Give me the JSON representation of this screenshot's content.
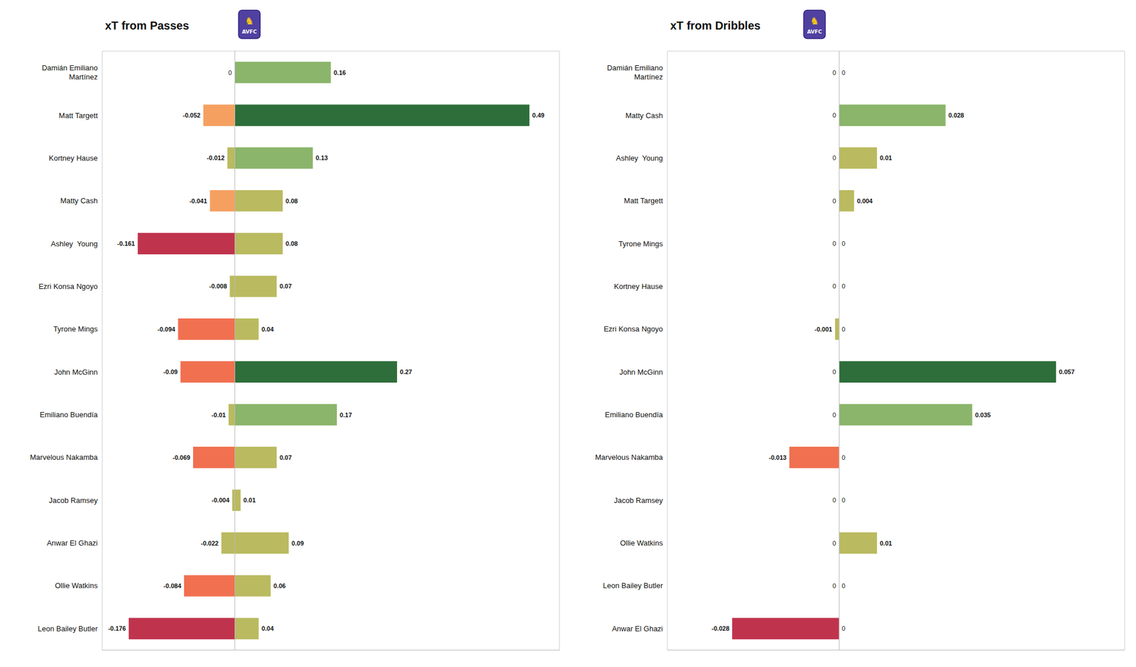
{
  "chart_data": [
    {
      "type": "bar",
      "title": "xT from Passes",
      "orientation": "horizontal",
      "annotations": [
        "♞",
        "AVFC"
      ],
      "categories": [
        "Damián Emiliano\nMartínez",
        "Matt Targett",
        "Kortney Hause",
        "Matty Cash",
        "Ashley  Young",
        "Ezri Konsa Ngoyo",
        "Tyrone Mings",
        "John McGinn",
        "Emiliano Buendía",
        "Marvelous Nakamba",
        "Jacob Ramsey",
        "Anwar El Ghazi",
        "Ollie Watkins",
        "Leon Bailey Butler"
      ],
      "series": [
        {
          "values": [
            0.0,
            -0.052,
            -0.012,
            -0.041,
            -0.161,
            -0.008,
            -0.094,
            -0.09,
            -0.01,
            -0.069,
            -0.004,
            -0.022,
            -0.084,
            -0.176
          ],
          "colors": [
            "none",
            "#f5a060",
            "#baba60",
            "#f5a060",
            "#c0334d",
            "#baba60",
            "#f07050",
            "#f07050",
            "#baba60",
            "#f07050",
            "#baba60",
            "#baba60",
            "#f07050",
            "#c0334d"
          ]
        },
        {
          "values": [
            0.16,
            0.49,
            0.13,
            0.08,
            0.08,
            0.07,
            0.04,
            0.27,
            0.17,
            0.07,
            0.01,
            0.09,
            0.06,
            0.04
          ],
          "colors": [
            "#8ab56a",
            "#2d6e3a",
            "#8ab56a",
            "#baba60",
            "#baba60",
            "#baba60",
            "#baba60",
            "#2d6e3a",
            "#8ab56a",
            "#baba60",
            "#baba60",
            "#baba60",
            "#baba60",
            "#baba60"
          ]
        }
      ],
      "xlim": [
        -0.22,
        0.54
      ],
      "xticks": [],
      "tick_labels": "y",
      "grid": false,
      "data_labels": true
    },
    {
      "type": "bar",
      "title": "xT from Dribbles",
      "orientation": "horizontal",
      "annotations": [
        "♞",
        "AVFC"
      ],
      "categories": [
        "Damián Emiliano\nMartínez",
        "Matty Cash",
        "Ashley  Young",
        "Matt Targett",
        "Tyrone Mings",
        "Kortney Hause",
        "Ezri Konsa Ngoyo",
        "John McGinn",
        "Emiliano Buendía",
        "Marvelous Nakamba",
        "Jacob Ramsey",
        "Ollie Watkins",
        "Leon Bailey Butler",
        "Anwar El Ghazi"
      ],
      "series": [
        {
          "values": [
            0.0,
            0.0,
            0.0,
            0.0,
            0.0,
            0.0,
            -0.001,
            0.0,
            0.0,
            -0.013,
            0.0,
            0.0,
            0.0,
            -0.028
          ],
          "colors": [
            "none",
            "none",
            "none",
            "none",
            "none",
            "none",
            "#baba60",
            "none",
            "none",
            "#f07050",
            "none",
            "none",
            "none",
            "#c0334d"
          ]
        },
        {
          "values": [
            0.0,
            0.028,
            0.01,
            0.004,
            0.0,
            0.0,
            0.0,
            0.057,
            0.035,
            0.0,
            0.0,
            0.01,
            0.0,
            0.0
          ],
          "colors": [
            "none",
            "#8ab56a",
            "#baba60",
            "#baba60",
            "none",
            "none",
            "none",
            "#2d6e3a",
            "#8ab56a",
            "none",
            "none",
            "#baba60",
            "none",
            "none"
          ]
        }
      ],
      "xlim": [
        -0.045,
        0.075
      ],
      "xticks": [],
      "tick_labels": "y",
      "grid": false,
      "data_labels": true
    }
  ]
}
